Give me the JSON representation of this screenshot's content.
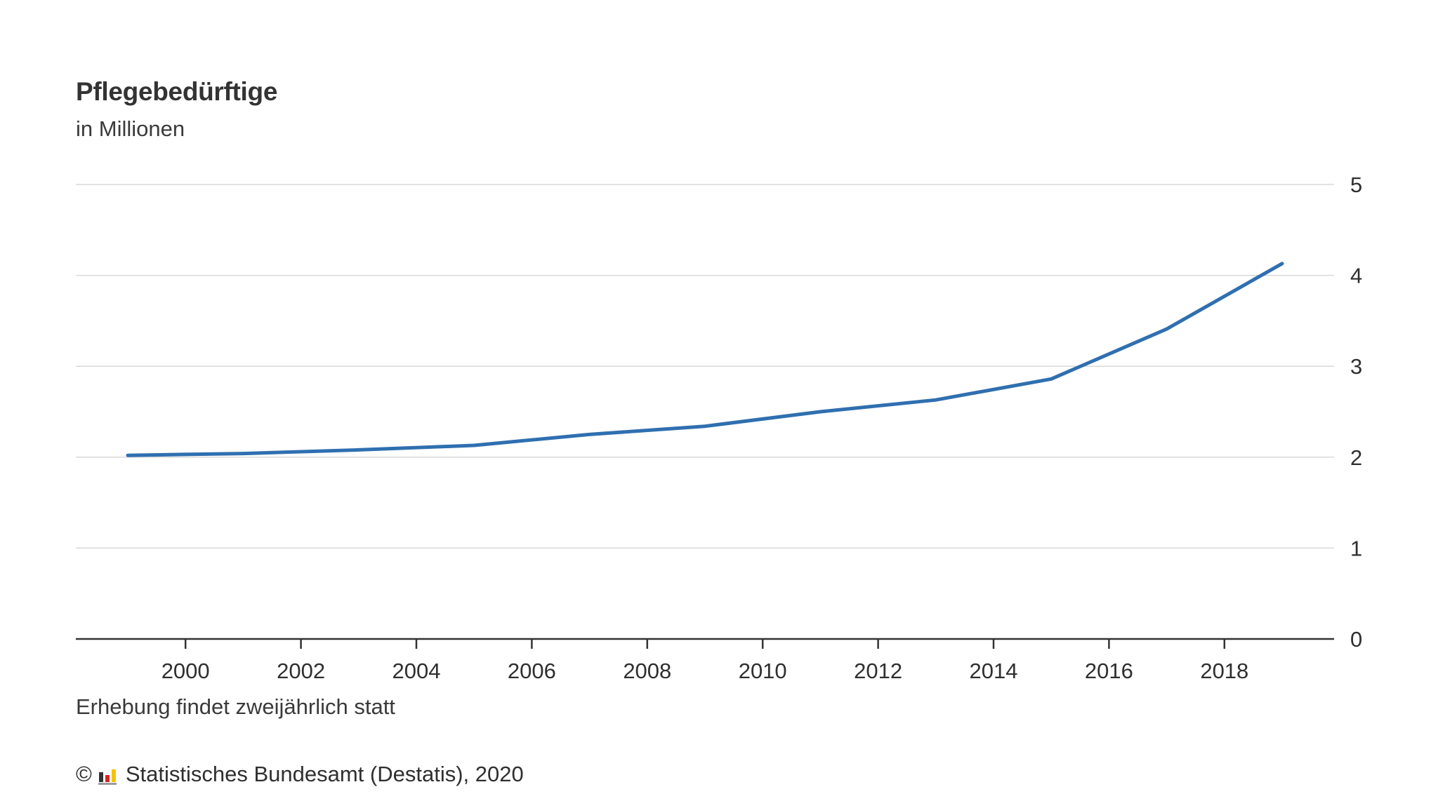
{
  "header": {
    "title": "Pflegebedürftige",
    "subtitle": "in Millionen"
  },
  "footer": {
    "note": "Erhebung findet zweijährlich statt",
    "copyright_symbol": "©",
    "source": "Statistisches Bundesamt (Destatis), 2020",
    "logo_icon": "destatis-logo-icon"
  },
  "colors": {
    "line": "#2f6fb0",
    "grid": "#d9d9d9",
    "axis": "#333333",
    "text": "#2f2f2f"
  },
  "chart_data": {
    "type": "line",
    "title": "Pflegebedürftige",
    "subtitle": "in Millionen",
    "xlabel": "",
    "ylabel": "",
    "x": [
      1999,
      2001,
      2003,
      2005,
      2007,
      2009,
      2011,
      2013,
      2015,
      2017,
      2019
    ],
    "series": [
      {
        "values": [
          2.02,
          2.04,
          2.08,
          2.13,
          2.25,
          2.34,
          2.5,
          2.63,
          2.86,
          3.41,
          4.13
        ]
      }
    ],
    "xlim": [
      1998.1,
      2019.9
    ],
    "ylim": [
      0,
      5
    ],
    "x_ticks": [
      "2000",
      "2002",
      "2004",
      "2006",
      "2008",
      "2010",
      "2012",
      "2014",
      "2016",
      "2018"
    ],
    "y_ticks": [
      "0",
      "1",
      "2",
      "3",
      "4",
      "5"
    ],
    "y_axis_side": "right",
    "grid": true
  }
}
